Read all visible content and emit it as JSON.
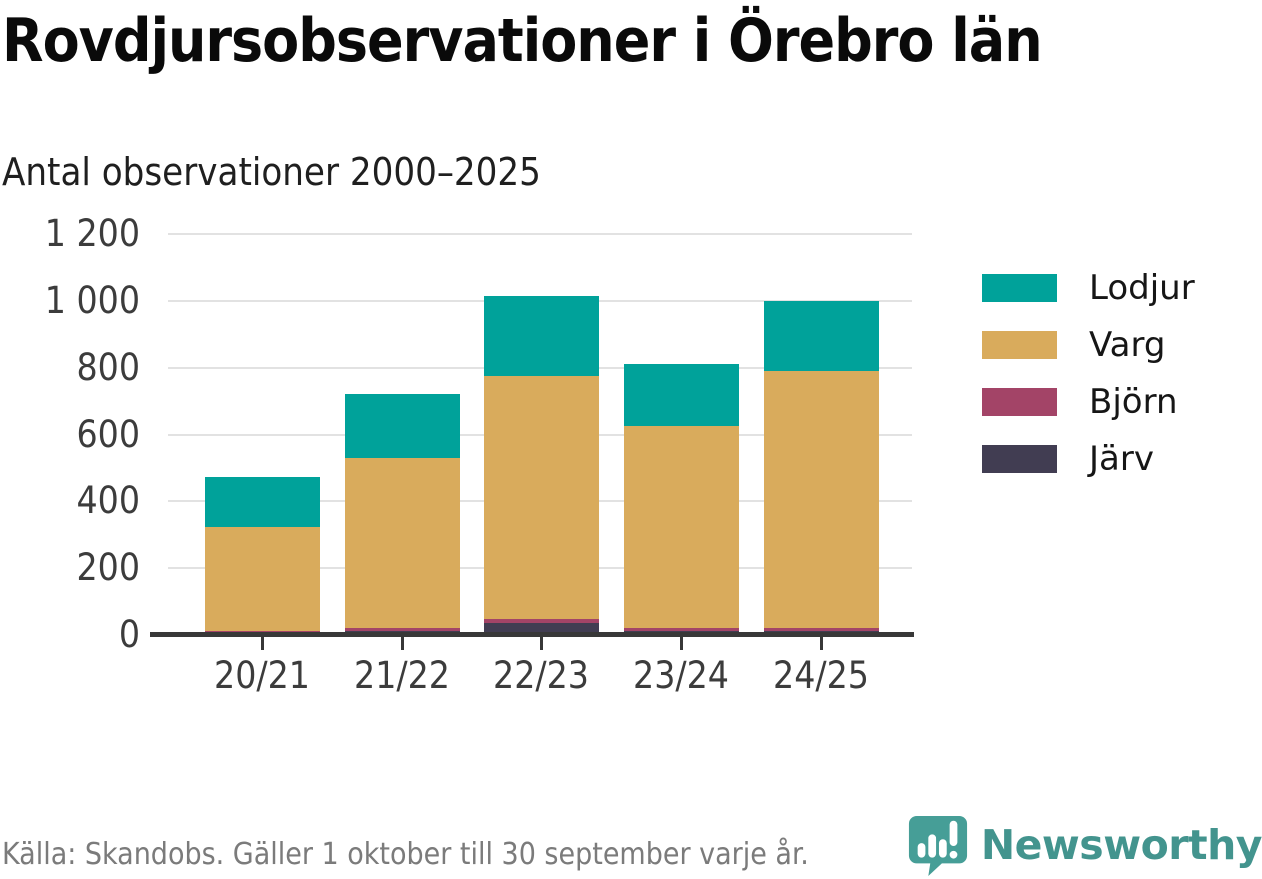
{
  "header": {
    "title": "Rovdjursobservationer i Örebro län",
    "subtitle": "Antal observationer 2000–2025"
  },
  "chart_data": {
    "type": "bar",
    "stacked": true,
    "title": "Rovdjursobservationer i Örebro län",
    "subtitle": "Antal observationer 2000–2025",
    "xlabel": "",
    "ylabel": "Antal observationer",
    "categories": [
      "20/21",
      "21/22",
      "22/23",
      "23/24",
      "24/25"
    ],
    "series": [
      {
        "name": "Lodjur",
        "color": "#00a29a",
        "values": [
          149,
          191,
          238,
          185,
          209
        ]
      },
      {
        "name": "Varg",
        "color": "#d9ab5c",
        "values": [
          311,
          508,
          728,
          605,
          769
        ]
      },
      {
        "name": "Björn",
        "color": "#a34467",
        "values": [
          8,
          10,
          11,
          9,
          8
        ]
      },
      {
        "name": "Järv",
        "color": "#413d52",
        "values": [
          4,
          12,
          37,
          12,
          13
        ]
      }
    ],
    "stack_order_bottom_to_top": [
      "Järv",
      "Björn",
      "Varg",
      "Lodjur"
    ],
    "totals": [
      472,
      721,
      1014,
      811,
      999
    ],
    "ylim": [
      0,
      1200
    ],
    "yticks": [
      0,
      200,
      400,
      600,
      800,
      1000,
      1200
    ],
    "ytick_labels": [
      "0",
      "200",
      "400",
      "600",
      "800",
      "1 000",
      "1 200"
    ],
    "grid": "horizontal",
    "legend_position": "right"
  },
  "footer": {
    "source": "Källa: Skandobs. Gäller 1 oktober till 30 september varje år.",
    "brand": "Newsworthy"
  },
  "colors": {
    "accent_teal": "#00a29a",
    "accent_gold": "#d9ab5c",
    "accent_maroon": "#a34467",
    "accent_slate": "#413d52",
    "logo_teal": "#469e97",
    "axis": "#383838",
    "gridline": "#e2e2e2",
    "muted_text": "#7b7b7b"
  }
}
